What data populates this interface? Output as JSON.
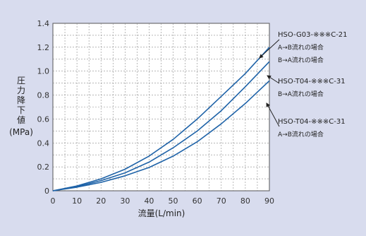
{
  "chart_data": {
    "type": "line",
    "xlabel": "流量(L/min)",
    "ylabel_chars": [
      "圧",
      "力",
      "降",
      "下",
      "値"
    ],
    "ylabel_unit": "(MPa)",
    "xlim": [
      0,
      90
    ],
    "ylim": [
      0,
      1.4
    ],
    "x_ticks": [
      "10",
      "20",
      "30",
      "40",
      "50",
      "60",
      "70",
      "80",
      "90"
    ],
    "y_ticks": [
      "0",
      "0.2",
      "0.4",
      "0.6",
      "0.8",
      "1.0",
      "1.2",
      "1.4"
    ],
    "x_zero_label": "0",
    "grid": true,
    "line_color": "#1f63a8",
    "series": [
      {
        "x": [
          0,
          10,
          20,
          30,
          40,
          50,
          60,
          70,
          80,
          90
        ],
        "values": [
          0,
          0.04,
          0.1,
          0.18,
          0.29,
          0.43,
          0.6,
          0.79,
          0.98,
          1.2
        ]
      },
      {
        "x": [
          0,
          10,
          20,
          30,
          40,
          50,
          60,
          70,
          80,
          90
        ],
        "values": [
          0,
          0.035,
          0.085,
          0.15,
          0.24,
          0.36,
          0.5,
          0.67,
          0.87,
          1.08
        ]
      },
      {
        "x": [
          0,
          10,
          20,
          30,
          40,
          50,
          60,
          70,
          80,
          90
        ],
        "values": [
          0,
          0.03,
          0.07,
          0.125,
          0.195,
          0.29,
          0.41,
          0.56,
          0.73,
          0.92
        ]
      }
    ],
    "annotations": [
      {
        "main": "HSO-G03-※※※C-21",
        "subs": [
          "A→B流れの場合",
          "B→A流れの場合"
        ]
      },
      {
        "main": "HSO-T04-※※※C-31",
        "subs": [
          "B→A流れの場合"
        ]
      },
      {
        "main": "HSO-T04-※※※C-31",
        "subs": [
          "A→B流れの場合"
        ]
      }
    ]
  }
}
